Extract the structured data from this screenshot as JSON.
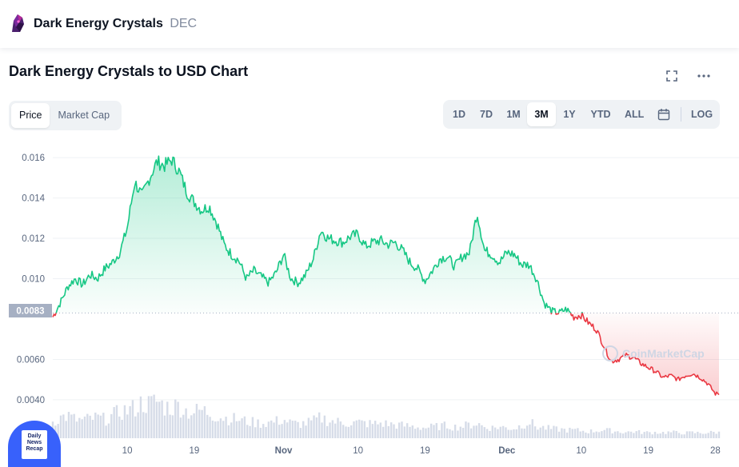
{
  "header": {
    "coin_name": "Dark Energy Crystals",
    "coin_symbol": "DEC",
    "logo_icon": "dec-crystal-logo-icon"
  },
  "chart_title": "Dark Energy Crystals to USD Chart",
  "toolbar": {
    "fullscreen_icon": "fullscreen-icon",
    "more_icon": "more-horizontal-icon"
  },
  "view_toggle": {
    "options": [
      "Price",
      "Market Cap"
    ],
    "selected": "Price"
  },
  "time_ranges": {
    "options": [
      "1D",
      "7D",
      "1M",
      "3M",
      "1Y",
      "YTD",
      "ALL"
    ],
    "selected": "3M",
    "calendar_icon": "calendar-icon",
    "log_label": "LOG"
  },
  "colors": {
    "up": "#16c784",
    "down": "#ea3943",
    "grid": "#eff2f5",
    "axis_text": "#58667e",
    "accent": "#3861fb"
  },
  "watermark": "CoinMarketCap",
  "news_badge": {
    "line1": "Daily",
    "line2": "News",
    "line3": "Recap"
  },
  "chart_data": {
    "type": "area",
    "title": "Dark Energy Crystals to USD Chart",
    "xlabel": "",
    "ylabel": "",
    "ylim": [
      0.0036,
      0.0166
    ],
    "yticks": [
      0.016,
      0.014,
      0.012,
      0.01,
      0.006,
      0.004
    ],
    "ytick_labels": [
      "0.016",
      "0.014",
      "0.012",
      "0.010",
      "0.0060",
      "0.0040"
    ],
    "xticks": [
      {
        "label": "10",
        "t": 10
      },
      {
        "label": "19",
        "t": 19
      },
      {
        "label": "Nov",
        "t": 31
      },
      {
        "label": "10",
        "t": 41
      },
      {
        "label": "19",
        "t": 50
      },
      {
        "label": "Dec",
        "t": 61
      },
      {
        "label": "10",
        "t": 71
      },
      {
        "label": "19",
        "t": 80
      },
      {
        "label": "28",
        "t": 89
      }
    ],
    "baseline": 0.0083,
    "baseline_label": "0.0083",
    "grid": true,
    "price_series": {
      "t": [
        0,
        1,
        2,
        3,
        4,
        5,
        6,
        7,
        8,
        9,
        10,
        11,
        12,
        13,
        14,
        15,
        16,
        17,
        18,
        19,
        20,
        21,
        22,
        23,
        24,
        25,
        26,
        27,
        28,
        29,
        30,
        31,
        32,
        33,
        34,
        35,
        36,
        37,
        38,
        39,
        40,
        41,
        42,
        43,
        44,
        45,
        46,
        47,
        48,
        49,
        50,
        51,
        52,
        53,
        54,
        55,
        56,
        57,
        58,
        59,
        60,
        61,
        62,
        63,
        64,
        65,
        66,
        67,
        68,
        69,
        70,
        71,
        72,
        73,
        74,
        75,
        76,
        77,
        78,
        79,
        80,
        81,
        82,
        83,
        84,
        85,
        86,
        87,
        88,
        89,
        89.5
      ],
      "values": [
        0.0081,
        0.0088,
        0.0096,
        0.01,
        0.0097,
        0.0102,
        0.01,
        0.0105,
        0.0108,
        0.0113,
        0.0125,
        0.0148,
        0.0141,
        0.015,
        0.0158,
        0.0156,
        0.0159,
        0.0153,
        0.0143,
        0.0138,
        0.0134,
        0.0136,
        0.0128,
        0.0117,
        0.0112,
        0.0109,
        0.01,
        0.0104,
        0.0101,
        0.0098,
        0.0103,
        0.0112,
        0.01,
        0.0098,
        0.0102,
        0.011,
        0.0124,
        0.012,
        0.0119,
        0.0118,
        0.0121,
        0.0122,
        0.0116,
        0.0118,
        0.0119,
        0.0117,
        0.0118,
        0.0114,
        0.0108,
        0.0105,
        0.0099,
        0.0104,
        0.011,
        0.0111,
        0.0106,
        0.0111,
        0.0113,
        0.0133,
        0.0114,
        0.0112,
        0.0108,
        0.0113,
        0.0112,
        0.0107,
        0.0107,
        0.01,
        0.0088,
        0.0084,
        0.0083,
        0.0085,
        0.0081,
        0.0082,
        0.0078,
        0.0075,
        0.0067,
        0.0059,
        0.006,
        0.0062,
        0.0061,
        0.0058,
        0.0056,
        0.0054,
        0.0051,
        0.0052,
        0.005,
        0.0052,
        0.0053,
        0.0051,
        0.0048,
        0.0043,
        0.0043
      ]
    },
    "volume_series": {
      "t": [
        0,
        1,
        2,
        3,
        4,
        5,
        6,
        7,
        8,
        9,
        10,
        11,
        12,
        13,
        14,
        15,
        16,
        17,
        18,
        19,
        20,
        21,
        22,
        23,
        24,
        25,
        26,
        27,
        28,
        29,
        30,
        31,
        32,
        33,
        34,
        35,
        36,
        37,
        38,
        39,
        40,
        41,
        42,
        43,
        44,
        45,
        46,
        47,
        48,
        49,
        50,
        51,
        52,
        53,
        54,
        55,
        56,
        57,
        58,
        59,
        60,
        61,
        62,
        63,
        64,
        65,
        66,
        67,
        68,
        69,
        70,
        71,
        72,
        73,
        74,
        75,
        76,
        77,
        78,
        79,
        80,
        81,
        82,
        83,
        84,
        85,
        86,
        87,
        88,
        89,
        89.5
      ],
      "values": [
        0.45,
        0.55,
        0.6,
        0.5,
        0.48,
        0.52,
        0.55,
        0.5,
        0.6,
        0.7,
        0.75,
        0.8,
        0.95,
        0.9,
        1.0,
        0.85,
        0.82,
        0.88,
        0.72,
        0.7,
        0.75,
        0.68,
        0.6,
        0.55,
        0.52,
        0.5,
        0.45,
        0.42,
        0.4,
        0.42,
        0.45,
        0.5,
        0.4,
        0.38,
        0.4,
        0.45,
        0.55,
        0.48,
        0.44,
        0.42,
        0.4,
        0.42,
        0.4,
        0.38,
        0.4,
        0.38,
        0.36,
        0.34,
        0.32,
        0.3,
        0.28,
        0.3,
        0.32,
        0.34,
        0.3,
        0.32,
        0.36,
        0.4,
        0.3,
        0.28,
        0.3,
        0.28,
        0.26,
        0.35,
        0.45,
        0.3,
        0.28,
        0.25,
        0.24,
        0.22,
        0.22,
        0.2,
        0.18,
        0.2,
        0.22,
        0.2,
        0.18,
        0.16,
        0.18,
        0.16,
        0.15,
        0.16,
        0.15,
        0.16,
        0.15,
        0.14,
        0.15,
        0.14,
        0.15,
        0.16,
        0.15
      ]
    }
  }
}
